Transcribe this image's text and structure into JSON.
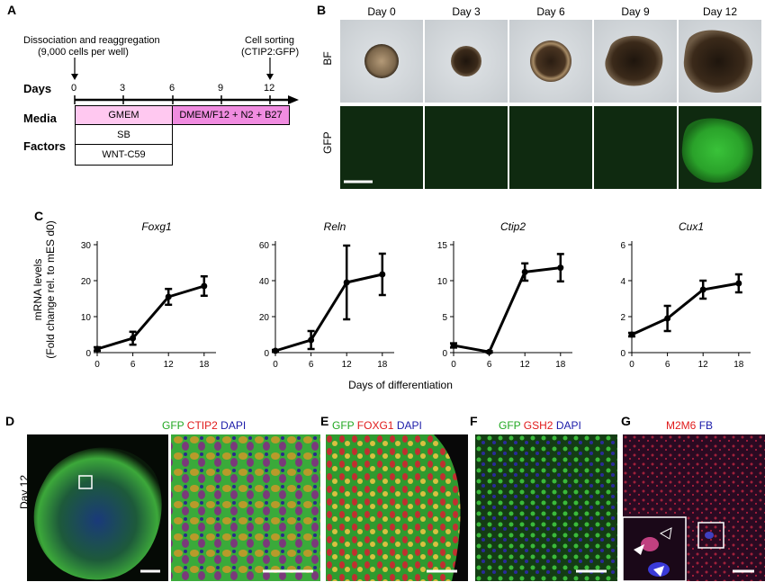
{
  "panel_labels": {
    "a": "A",
    "b": "B",
    "c": "C",
    "d": "D",
    "e": "E",
    "f": "F",
    "g": "G"
  },
  "timeline": {
    "dissociation": "Dissociation and reaggregation",
    "cells_per_well": "(9,000 cells per well)",
    "cell_sorting": "Cell sorting",
    "ctip2_gfp": "(CTIP2:GFP)",
    "days_label": "Days",
    "ticks": [
      "0",
      "3",
      "6",
      "9",
      "12"
    ],
    "media_label": "Media",
    "media_1": "GMEM",
    "media_2": "DMEM/F12 + N2 + B27",
    "factors_label": "Factors",
    "factor_1": "SB",
    "factor_2": "WNT-C59",
    "colors": {
      "media_1": "#ffc8f0",
      "media_2": "#f08ce0"
    }
  },
  "imaging": {
    "days": [
      "Day 0",
      "Day 3",
      "Day 6",
      "Day 9",
      "Day 12"
    ],
    "row_bf": "BF",
    "row_gfp": "GFP"
  },
  "chart_data": [
    {
      "type": "line",
      "title": "Foxg1",
      "x": [
        0,
        6,
        12,
        18
      ],
      "values": [
        1,
        4,
        15.5,
        18.5
      ],
      "errors": [
        0.5,
        1.8,
        2.2,
        2.7
      ],
      "ylim": [
        0,
        30
      ],
      "yticks": [
        0,
        10,
        20,
        30
      ],
      "xticks": [
        0,
        6,
        12,
        18
      ]
    },
    {
      "type": "line",
      "title": "Reln",
      "x": [
        0,
        6,
        12,
        18
      ],
      "values": [
        1,
        7,
        39,
        43.5
      ],
      "errors": [
        0.5,
        5,
        20.5,
        11.5
      ],
      "ylim": [
        0,
        60
      ],
      "yticks": [
        0,
        20,
        40,
        60
      ],
      "xticks": [
        0,
        6,
        12,
        18
      ]
    },
    {
      "type": "line",
      "title": "Ctip2",
      "x": [
        0,
        6,
        12,
        18
      ],
      "values": [
        1,
        0.1,
        11.2,
        11.8
      ],
      "errors": [
        0.3,
        0.1,
        1.2,
        1.9
      ],
      "ylim": [
        0,
        15
      ],
      "yticks": [
        0,
        5,
        10,
        15
      ],
      "xticks": [
        0,
        6,
        12,
        18
      ]
    },
    {
      "type": "line",
      "title": "Cux1",
      "x": [
        0,
        6,
        12,
        18
      ],
      "values": [
        1,
        1.9,
        3.5,
        3.85
      ],
      "errors": [
        0.1,
        0.7,
        0.5,
        0.5
      ],
      "ylim": [
        0,
        6
      ],
      "yticks": [
        0,
        2,
        4,
        6
      ],
      "xticks": [
        0,
        6,
        12,
        18
      ]
    }
  ],
  "chart_labels": {
    "ylabel_1": "mRNA levels",
    "ylabel_2": "(Fold change rel. to mES d0)",
    "xlabel": "Days of differentiation"
  },
  "micro": {
    "d_gfp": "GFP",
    "d_ctip2": "CTIP2",
    "d_dapi": "DAPI",
    "e_gfp": "GFP",
    "e_foxg1": "FOXG1",
    "e_dapi": "DAPI",
    "f_gfp": "GFP",
    "f_gsh2": "GSH2",
    "f_dapi": "DAPI",
    "g_m2m6": "M2M6",
    "g_fb": "FB",
    "day12": "Day 12",
    "colors": {
      "green": "#22a822",
      "red": "#e01a1a",
      "blue": "#1a1aa8"
    }
  }
}
